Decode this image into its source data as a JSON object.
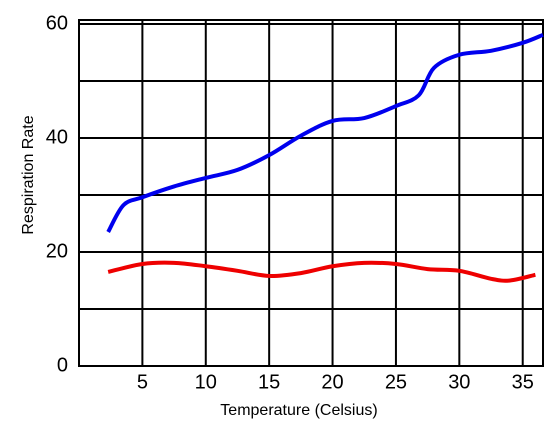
{
  "chart_data": {
    "type": "line",
    "x_label": "Temperature (Celsius)",
    "y_label": "Respiration Rate",
    "xlim": [
      0,
      36.6
    ],
    "ylim": [
      0,
      60.7
    ],
    "xticks": [
      5,
      10,
      15,
      20,
      25,
      30,
      35
    ],
    "yticks": [
      0,
      20,
      40,
      60
    ],
    "ygrid": [
      10,
      30,
      50
    ],
    "grid": true,
    "series": [
      {
        "color": "#0000ee",
        "x": [
          2.3,
          3.5,
          5,
          7.5,
          10,
          12.5,
          15,
          17.5,
          20,
          22.5,
          25,
          26.8,
          28,
          30,
          32.5,
          35,
          36.6
        ],
        "values": [
          23.5,
          28.2,
          29.6,
          31.5,
          33,
          34.4,
          37,
          40.4,
          43,
          43.5,
          45.6,
          47.5,
          52.3,
          54.6,
          55.3,
          56.7,
          58.1
        ]
      },
      {
        "color": "#ee0000",
        "x": [
          2.3,
          5,
          7.5,
          10,
          12.5,
          15,
          17.5,
          20,
          22.5,
          25,
          27.5,
          30,
          32.5,
          34,
          36
        ],
        "values": [
          16.5,
          17.9,
          18.1,
          17.5,
          16.7,
          15.8,
          16.3,
          17.5,
          18.1,
          17.9,
          17,
          16.7,
          15.3,
          15,
          16
        ]
      }
    ]
  }
}
